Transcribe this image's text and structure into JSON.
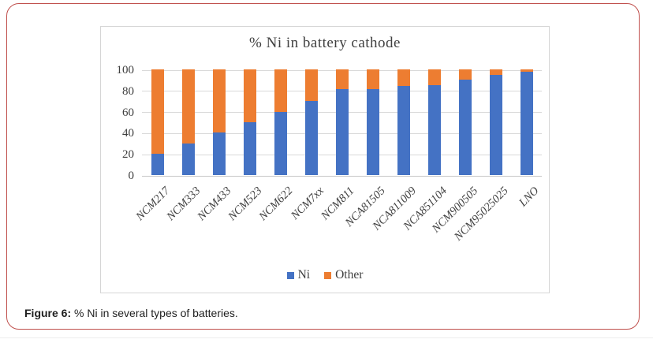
{
  "chart_data": {
    "type": "bar",
    "stacked": true,
    "title": "% Ni in battery cathode",
    "categories": [
      "NCM217",
      "NCM333",
      "NCM433",
      "NCM523",
      "NCM622",
      "NCM7xx",
      "NCM811",
      "NCA81505",
      "NCA811009",
      "NCA851104",
      "NCM900505",
      "NCM95025025",
      "LNO"
    ],
    "series": [
      {
        "name": "Ni",
        "color": "#4472C4",
        "values": [
          20,
          30,
          40,
          50,
          60,
          70,
          81,
          81,
          84,
          85,
          90,
          95,
          98
        ]
      },
      {
        "name": "Other",
        "color": "#ED7D31",
        "values": [
          80,
          70,
          60,
          50,
          40,
          30,
          19,
          19,
          16,
          15,
          10,
          5,
          2
        ]
      }
    ],
    "xlabel": "",
    "ylabel": "",
    "ylim": [
      0,
      100
    ],
    "yticks": [
      0,
      20,
      40,
      60,
      80,
      100
    ],
    "grid": true,
    "legend_position": "bottom"
  },
  "figure": {
    "caption_label": "Figure 6:",
    "caption_text": " % Ni in several types of batteries.",
    "border_color": "#c0504d"
  }
}
